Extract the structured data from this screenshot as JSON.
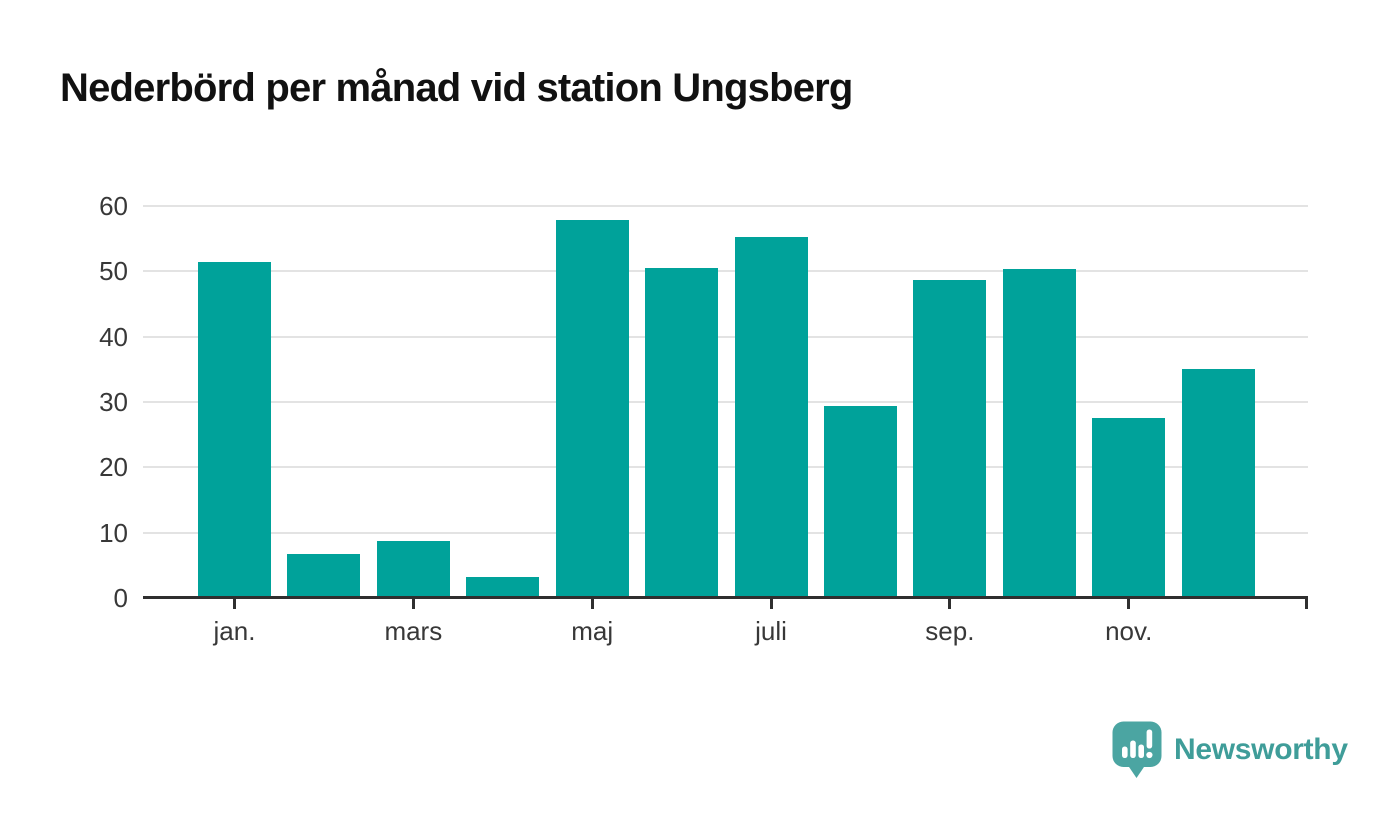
{
  "title": "Nederbörd per månad vid station Ungsberg",
  "chart_data": {
    "type": "bar",
    "title": "Nederbörd per månad vid station Ungsberg",
    "xlabel": "",
    "ylabel": "",
    "y_ticks": [
      0,
      10,
      20,
      30,
      40,
      50,
      60
    ],
    "ylim": [
      0,
      60
    ],
    "grid": "horizontal",
    "legend": "none",
    "bar_color": "#00a29a",
    "values": [
      51.5,
      6.7,
      8.8,
      3.2,
      57.8,
      50.5,
      55.2,
      29.4,
      48.7,
      50.3,
      27.5,
      35.0
    ],
    "x_tick_labels": [
      {
        "index": 0,
        "label": "jan."
      },
      {
        "index": 2,
        "label": "mars"
      },
      {
        "index": 4,
        "label": "maj"
      },
      {
        "index": 6,
        "label": "juli"
      },
      {
        "index": 8,
        "label": "sep."
      },
      {
        "index": 10,
        "label": "nov."
      }
    ]
  },
  "footer": {
    "brand": "Newsworthy",
    "brand_text_color": "#3f9d99",
    "logo_bubble_color": "#4ba5a2"
  },
  "colors": {
    "bar": "#00a29a",
    "axis": "#2f2f2f",
    "gridline": "#e3e3e3",
    "tick_label": "#383838",
    "title": "#111111",
    "background": "#ffffff"
  }
}
